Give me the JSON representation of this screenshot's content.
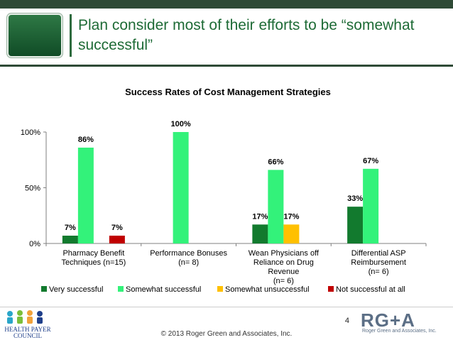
{
  "slide": {
    "title": "Plan consider most of their efforts to be “somewhat successful”",
    "page_number": "4",
    "copyright": "© 2013 Roger Green and Associates, Inc.",
    "logo_left": "HEALTH PAYER COUNCIL",
    "logo_right_main": "RG+A",
    "logo_right_sub": "Roger Green and Associates, Inc."
  },
  "colors": {
    "very_successful": "#127a2e",
    "somewhat_successful": "#33f27a",
    "somewhat_unsuccessful": "#ffc000",
    "not_successful": "#c00000",
    "title_green": "#1e6b36",
    "band": "#2e4a36"
  },
  "chart_data": {
    "type": "bar",
    "title": "Success Rates of Cost Management Strategies",
    "categories": [
      [
        "Pharmacy Benefit",
        "Techniques (n=15)"
      ],
      [
        "Performance Bonuses",
        "(n= 8)"
      ],
      [
        "Wean Physicians off",
        "Reliance on Drug",
        "Revenue",
        "(n= 6)"
      ],
      [
        "Differential ASP",
        "Reimbursement",
        "(n= 6)"
      ]
    ],
    "series": [
      {
        "name": "Very successful",
        "values": [
          7,
          null,
          17,
          33
        ],
        "labels": [
          "7%",
          "",
          "17%",
          "33%"
        ]
      },
      {
        "name": "Somewhat successful",
        "values": [
          86,
          100,
          66,
          67
        ],
        "labels": [
          "86%",
          "100%",
          "66%",
          "67%"
        ]
      },
      {
        "name": "Somewhat unsuccessful",
        "values": [
          null,
          null,
          17,
          null
        ],
        "labels": [
          "",
          "",
          "17%",
          ""
        ]
      },
      {
        "name": "Not successful at all",
        "values": [
          7,
          null,
          null,
          null
        ],
        "labels": [
          "7%",
          "",
          "",
          ""
        ]
      }
    ],
    "yticks": [
      "0%",
      "50%",
      "100%"
    ],
    "ylim": [
      0,
      100
    ],
    "ytick_values": [
      0,
      50,
      100
    ],
    "legend": "bottom",
    "grid": false
  }
}
